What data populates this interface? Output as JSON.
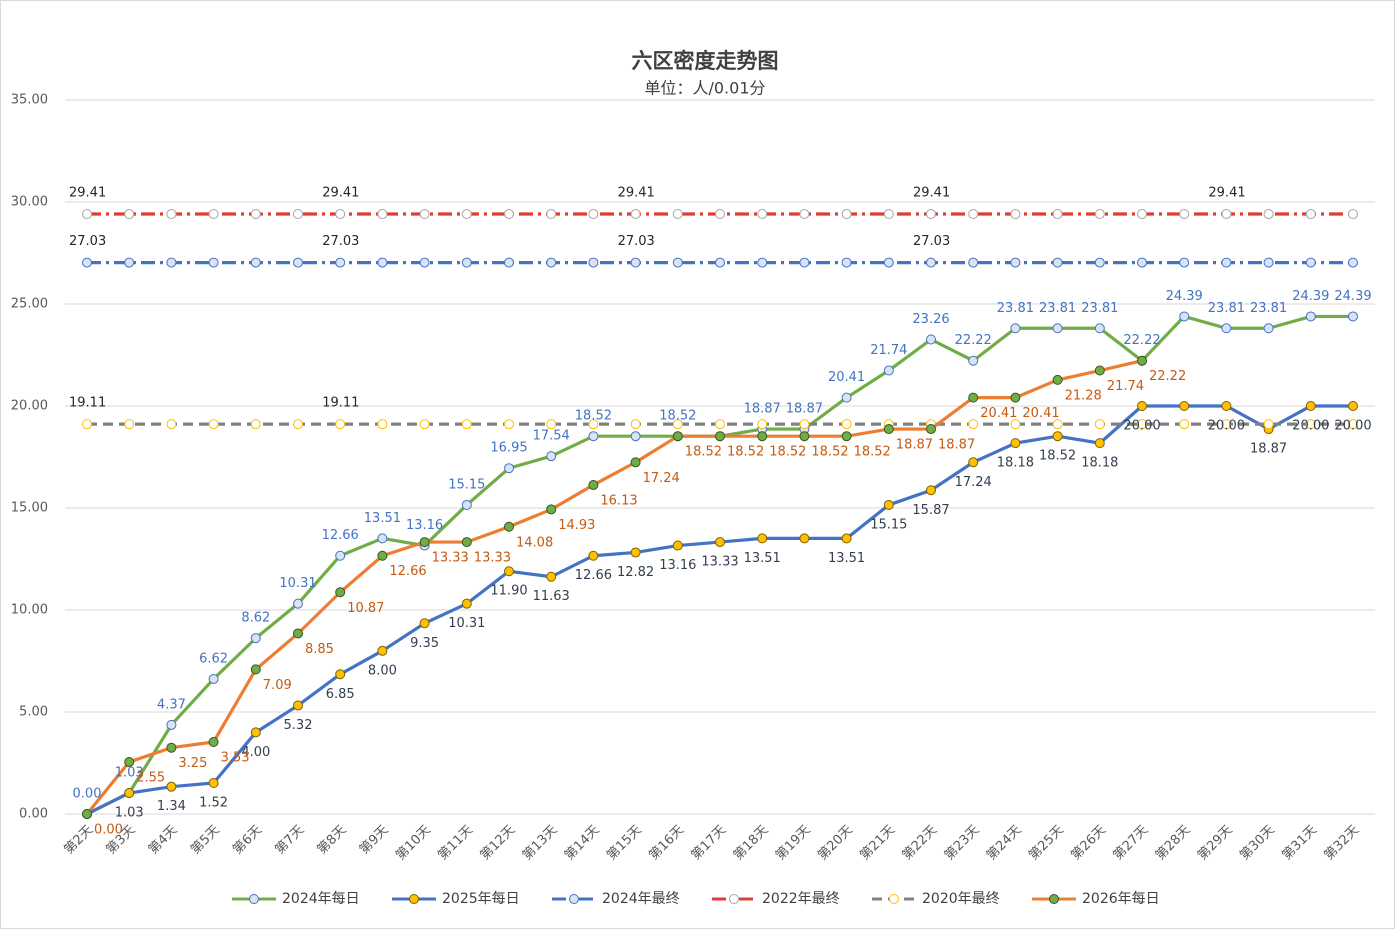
{
  "chart_data": {
    "type": "line",
    "title": "六区密度走势图",
    "subtitle": "单位：人/0.01分",
    "categories": [
      "第2天",
      "第3天",
      "第4天",
      "第5天",
      "第6天",
      "第7天",
      "第8天",
      "第9天",
      "第10天",
      "第11天",
      "第12天",
      "第13天",
      "第14天",
      "第15天",
      "第16天",
      "第17天",
      "第18天",
      "第19天",
      "第20天",
      "第21天",
      "第22天",
      "第23天",
      "第24天",
      "第25天",
      "第26天",
      "第27天",
      "第28天",
      "第29天",
      "第30天",
      "第31天",
      "第32天"
    ],
    "ylim": [
      0,
      35
    ],
    "yticks": [
      {
        "value": 0,
        "label": "0.00"
      },
      {
        "value": 5,
        "label": "5.00"
      },
      {
        "value": 10,
        "label": "10.00"
      },
      {
        "value": 15,
        "label": "15.00"
      },
      {
        "value": 20,
        "label": "20.00"
      },
      {
        "value": 25,
        "label": "25.00"
      },
      {
        "value": 30,
        "label": "30.00"
      },
      {
        "value": 35,
        "label": "35.00"
      }
    ],
    "grid": true,
    "legend": "bottom",
    "series": [
      {
        "name": "2024年每日",
        "color": "#70ad47",
        "marker_fill": "#dae3f3",
        "marker_stroke": "#4472c4",
        "label_color": "#4472c4",
        "line_style": "solid",
        "label_position": "above",
        "values": [
          0,
          1.03,
          4.37,
          6.62,
          8.62,
          10.31,
          12.66,
          13.51,
          13.16,
          15.15,
          16.95,
          17.54,
          18.52,
          18.52,
          18.52,
          18.52,
          18.87,
          18.87,
          20.41,
          21.74,
          23.26,
          22.22,
          23.81,
          23.81,
          23.81,
          22.22,
          24.39,
          23.81,
          23.81,
          24.39,
          24.39
        ],
        "value_labels": [
          "0.00",
          "1.03",
          "4.37",
          "6.62",
          "8.62",
          "10.31",
          "12.66",
          "13.51",
          "13.16",
          "15.15",
          "16.95",
          "17.54",
          "18.52",
          null,
          "18.52",
          null,
          "18.87",
          "18.87",
          "20.41",
          "21.74",
          "23.26",
          "22.22",
          "23.81",
          "23.81",
          "23.81",
          "22.22",
          "24.39",
          "23.81",
          "23.81",
          "24.39",
          "24.39"
        ]
      },
      {
        "name": "2025年每日",
        "color": "#4472c4",
        "marker_fill": "#ffc000",
        "marker_stroke": "#7f6000",
        "label_color": "#333f50",
        "line_style": "solid",
        "label_position": "below",
        "values": [
          0,
          1.03,
          1.34,
          1.52,
          4.0,
          5.32,
          6.85,
          8.0,
          9.35,
          10.31,
          11.9,
          11.63,
          12.66,
          12.82,
          13.16,
          13.33,
          13.51,
          13.51,
          13.51,
          15.15,
          15.87,
          17.24,
          18.18,
          18.52,
          18.18,
          20.0,
          20.0,
          20.0,
          18.87,
          20.0,
          20.0
        ],
        "value_labels": [
          null,
          "1.03",
          "1.34",
          "1.52",
          "4.00",
          "5.32",
          "6.85",
          "8.00",
          "9.35",
          "10.31",
          "11.90",
          "11.63",
          "12.66",
          "12.82",
          "13.16",
          "13.33",
          "13.51",
          null,
          "13.51",
          "15.15",
          "15.87",
          "17.24",
          "18.18",
          "18.52",
          "18.18",
          "20.00",
          null,
          "20.00",
          "18.87",
          "20.00",
          "20.00"
        ]
      },
      {
        "name": "2024年最终",
        "color": "#4472c4",
        "marker_fill": "#dae3f3",
        "marker_stroke": "#4472c4",
        "label_color": "#262626",
        "line_style": "dash-dot",
        "label_position": "above",
        "values": [
          27.03,
          27.03,
          27.03,
          27.03,
          27.03,
          27.03,
          27.03,
          27.03,
          27.03,
          27.03,
          27.03,
          27.03,
          27.03,
          27.03,
          27.03,
          27.03,
          27.03,
          27.03,
          27.03,
          27.03,
          27.03,
          27.03,
          27.03,
          27.03,
          27.03,
          27.03,
          27.03,
          27.03,
          27.03,
          27.03,
          27.03
        ],
        "value_labels": [
          "27.03",
          null,
          null,
          null,
          null,
          null,
          "27.03",
          null,
          null,
          null,
          null,
          null,
          null,
          "27.03",
          null,
          null,
          null,
          null,
          null,
          null,
          "27.03",
          null,
          null,
          null,
          null,
          null,
          null,
          null,
          null,
          null,
          null
        ]
      },
      {
        "name": "2022年最终",
        "color": "#e03c31",
        "marker_fill": "#ffffff",
        "marker_stroke": "#a6a6a6",
        "label_color": "#262626",
        "line_style": "dash-dot",
        "label_position": "above",
        "values": [
          29.41,
          29.41,
          29.41,
          29.41,
          29.41,
          29.41,
          29.41,
          29.41,
          29.41,
          29.41,
          29.41,
          29.41,
          29.41,
          29.41,
          29.41,
          29.41,
          29.41,
          29.41,
          29.41,
          29.41,
          29.41,
          29.41,
          29.41,
          29.41,
          29.41,
          29.41,
          29.41,
          29.41,
          29.41,
          29.41,
          29.41
        ],
        "value_labels": [
          "29.41",
          null,
          null,
          null,
          null,
          null,
          "29.41",
          null,
          null,
          null,
          null,
          null,
          null,
          "29.41",
          null,
          null,
          null,
          null,
          null,
          null,
          "29.41",
          null,
          null,
          null,
          null,
          null,
          null,
          "29.41",
          null,
          null,
          null
        ]
      },
      {
        "name": "2020年最终",
        "color": "#808080",
        "marker_fill": "#ffffff",
        "marker_stroke": "#ffc000",
        "label_color": "#262626",
        "line_style": "dashed",
        "label_position": "above",
        "values": [
          19.11,
          19.11,
          19.11,
          19.11,
          19.11,
          19.11,
          19.11,
          19.11,
          19.11,
          19.11,
          19.11,
          19.11,
          19.11,
          19.11,
          19.11,
          19.11,
          19.11,
          19.11,
          19.11,
          19.11,
          19.11,
          19.11,
          19.11,
          19.11,
          19.11,
          19.11,
          19.11,
          19.11,
          19.11,
          19.11,
          19.11
        ],
        "value_labels": [
          "19.11",
          null,
          null,
          null,
          null,
          null,
          "19.11",
          null,
          null,
          null,
          null,
          null,
          null,
          null,
          null,
          null,
          null,
          null,
          null,
          null,
          null,
          null,
          null,
          null,
          null,
          null,
          null,
          null,
          null,
          null,
          null
        ]
      },
      {
        "name": "2026年每日",
        "color": "#ed7d31",
        "marker_fill": "#70ad47",
        "marker_stroke": "#375623",
        "label_color": "#c55a11",
        "line_style": "solid",
        "label_position": "right",
        "values": [
          0,
          2.55,
          3.25,
          3.53,
          7.09,
          8.85,
          10.87,
          12.66,
          13.33,
          13.33,
          14.08,
          14.93,
          16.13,
          17.24,
          18.52,
          18.52,
          18.52,
          18.52,
          18.52,
          18.87,
          18.87,
          20.41,
          20.41,
          21.28,
          21.74,
          22.22,
          null,
          null,
          null,
          null,
          null
        ],
        "value_labels": [
          "0.00",
          "2.55",
          "3.25",
          "3.53",
          "7.09",
          "8.85",
          "10.87",
          "12.66",
          "13.33",
          "13.33",
          "14.08",
          "14.93",
          "16.13",
          "17.24",
          "18.52",
          "18.52",
          "18.52",
          "18.52",
          "18.52",
          "18.87",
          "18.87",
          "20.41",
          "20.41",
          "21.28",
          "21.74",
          "22.22",
          null,
          null,
          null,
          null,
          null
        ]
      }
    ]
  }
}
